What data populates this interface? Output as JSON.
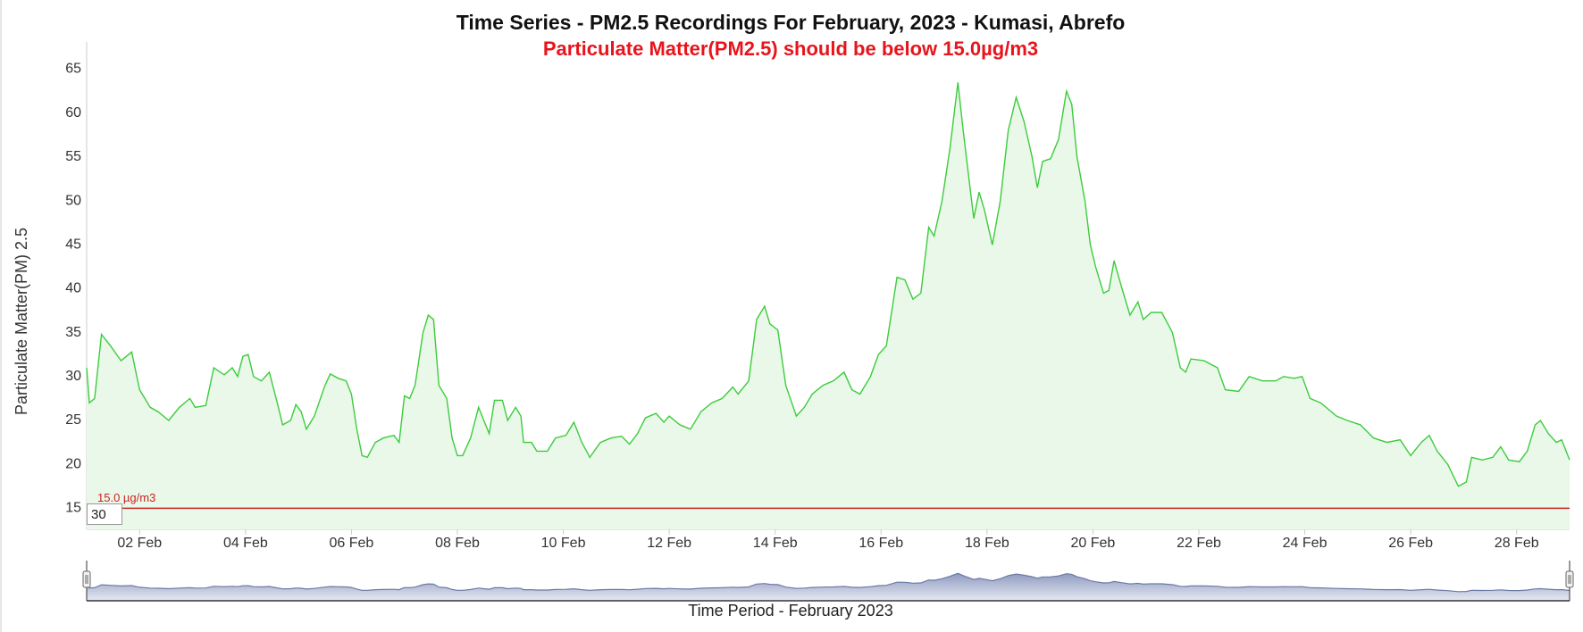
{
  "chart_data": {
    "type": "area",
    "title": "Time Series - PM2.5 Recordings For February, 2023 - Kumasi, Abrefo",
    "subtitle": "Particulate Matter(PM2.5) should be below 15.0µg/m3",
    "y_label": "Particulate Matter(PM) 2.5",
    "x_label": "Time Period - February 2023",
    "range_input": 30,
    "xlim": [
      1,
      29
    ],
    "ylim": [
      12.6,
      68.1
    ],
    "yticks": [
      15,
      20,
      25,
      30,
      35,
      40,
      45,
      50,
      55,
      60,
      65
    ],
    "xticks": [
      {
        "value": 2,
        "label": "02 Feb"
      },
      {
        "value": 4,
        "label": "04 Feb"
      },
      {
        "value": 6,
        "label": "06 Feb"
      },
      {
        "value": 8,
        "label": "08 Feb"
      },
      {
        "value": 10,
        "label": "10 Feb"
      },
      {
        "value": 12,
        "label": "12 Feb"
      },
      {
        "value": 14,
        "label": "14 Feb"
      },
      {
        "value": 16,
        "label": "16 Feb"
      },
      {
        "value": 18,
        "label": "18 Feb"
      },
      {
        "value": 20,
        "label": "20 Feb"
      },
      {
        "value": 22,
        "label": "22 Feb"
      },
      {
        "value": 24,
        "label": "24 Feb"
      },
      {
        "value": 26,
        "label": "26 Feb"
      },
      {
        "value": 28,
        "label": "28 Feb"
      }
    ],
    "grid": false,
    "threshold": {
      "value": 15,
      "label": "15.0 µg/m3",
      "color": "#cc2222"
    },
    "navigator_color": "#6b7aa6",
    "series": [
      {
        "name": "PM2.5",
        "color": "#3ccc3c",
        "fill": "#e9f8e9",
        "x": [
          1.0,
          1.05,
          1.15,
          1.28,
          1.45,
          1.65,
          1.85,
          2.0,
          2.2,
          2.35,
          2.55,
          2.75,
          2.95,
          3.05,
          3.25,
          3.4,
          3.6,
          3.75,
          3.85,
          3.95,
          4.05,
          4.15,
          4.3,
          4.45,
          4.6,
          4.7,
          4.85,
          4.95,
          5.05,
          5.15,
          5.3,
          5.5,
          5.6,
          5.75,
          5.9,
          6.0,
          6.1,
          6.2,
          6.3,
          6.45,
          6.6,
          6.8,
          6.9,
          7.0,
          7.1,
          7.2,
          7.35,
          7.45,
          7.55,
          7.65,
          7.8,
          7.9,
          8.0,
          8.1,
          8.25,
          8.4,
          8.5,
          8.6,
          8.7,
          8.85,
          8.95,
          9.1,
          9.2,
          9.25,
          9.4,
          9.5,
          9.7,
          9.85,
          10.05,
          10.2,
          10.35,
          10.5,
          10.7,
          10.9,
          11.1,
          11.25,
          11.4,
          11.55,
          11.75,
          11.9,
          12.0,
          12.2,
          12.4,
          12.6,
          12.8,
          13.0,
          13.2,
          13.3,
          13.5,
          13.65,
          13.8,
          13.9,
          14.05,
          14.2,
          14.4,
          14.55,
          14.7,
          14.9,
          15.1,
          15.3,
          15.45,
          15.6,
          15.8,
          15.95,
          16.1,
          16.3,
          16.45,
          16.6,
          16.75,
          16.9,
          17.0,
          17.15,
          17.3,
          17.45,
          17.55,
          17.75,
          17.85,
          17.95,
          18.1,
          18.25,
          18.4,
          18.55,
          18.7,
          18.85,
          18.95,
          19.05,
          19.2,
          19.35,
          19.5,
          19.6,
          19.7,
          19.85,
          19.95,
          20.05,
          20.2,
          20.3,
          20.4,
          20.55,
          20.7,
          20.85,
          20.95,
          21.1,
          21.3,
          21.5,
          21.65,
          21.75,
          21.85,
          22.1,
          22.35,
          22.5,
          22.75,
          22.95,
          23.2,
          23.45,
          23.6,
          23.8,
          23.95,
          24.1,
          24.3,
          24.6,
          24.8,
          25.05,
          25.3,
          25.55,
          25.8,
          26.0,
          26.2,
          26.35,
          26.5,
          26.7,
          26.9,
          27.05,
          27.15,
          27.35,
          27.55,
          27.7,
          27.85,
          28.05,
          28.2,
          28.35,
          28.45,
          28.6,
          28.75,
          28.85,
          29.0
        ],
        "values": [
          31,
          27,
          27.5,
          34.8,
          33.5,
          31.8,
          32.8,
          28.5,
          26.5,
          26,
          25,
          26.5,
          27.5,
          26.5,
          26.7,
          31,
          30.2,
          31,
          30,
          32.3,
          32.5,
          30,
          29.5,
          30.5,
          27,
          24.5,
          25,
          26.8,
          26,
          24,
          25.5,
          29,
          30.3,
          29.8,
          29.5,
          28,
          24,
          21,
          20.8,
          22.5,
          23,
          23.3,
          22.5,
          27.8,
          27.5,
          29,
          35,
          37,
          36.5,
          29,
          27.5,
          23,
          21,
          21,
          23,
          26.5,
          25,
          23.5,
          27.3,
          27.3,
          25,
          26.5,
          25.5,
          22.5,
          22.5,
          21.5,
          21.5,
          23,
          23.3,
          24.8,
          22.5,
          20.8,
          22.5,
          23,
          23.2,
          22.3,
          23.5,
          25.3,
          25.8,
          24.8,
          25.5,
          24.5,
          24,
          26,
          27,
          27.5,
          28.8,
          28,
          29.5,
          36.5,
          38,
          36,
          35.3,
          29,
          25.5,
          26.5,
          28,
          29,
          29.5,
          30.5,
          28.5,
          28,
          30,
          32.5,
          33.5,
          41.3,
          41,
          38.8,
          39.5,
          47,
          46,
          50,
          56,
          63.5,
          58,
          48,
          51,
          49,
          45,
          50,
          58,
          61.8,
          59,
          55,
          51.5,
          54.5,
          54.8,
          57,
          62.5,
          61,
          55,
          50,
          45,
          42.5,
          39.5,
          39.8,
          43.2,
          40,
          37,
          38.5,
          36.5,
          37.3,
          37.3,
          35,
          31,
          30.5,
          32,
          31.8,
          31,
          28.5,
          28.3,
          30,
          29.5,
          29.5,
          30,
          29.8,
          30,
          27.5,
          27,
          25.5,
          25,
          24.5,
          23,
          22.5,
          22.8,
          21,
          22.5,
          23.3,
          21.5,
          20,
          17.5,
          18,
          20.8,
          20.5,
          20.8,
          22,
          20.5,
          20.3,
          21.5,
          24.5,
          25,
          23.5,
          22.5,
          22.8,
          20.5
        ]
      }
    ]
  }
}
